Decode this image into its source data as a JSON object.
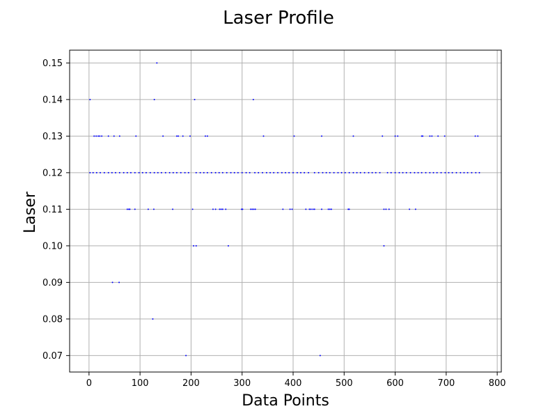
{
  "chart_data": {
    "type": "scatter",
    "title": "Laser Profile",
    "xlabel": "Data Points",
    "ylabel": "Laser",
    "xlim": [
      -38,
      808
    ],
    "ylim": [
      0.0655,
      0.1535
    ],
    "xticks": [
      0,
      100,
      200,
      300,
      400,
      500,
      600,
      700,
      800
    ],
    "yticks": [
      0.07,
      0.08,
      0.09,
      0.1,
      0.11,
      0.12,
      0.13,
      0.14,
      0.15
    ],
    "ytick_labels": [
      "0.07",
      "0.08",
      "0.09",
      "0.10",
      "0.11",
      "0.12",
      "0.13",
      "0.14",
      "0.15"
    ],
    "grid": true,
    "marker_color": "#0000ff",
    "series": [
      {
        "points": [
          [
            2,
            0.14
          ],
          [
            10,
            0.13
          ],
          [
            14,
            0.13
          ],
          [
            18,
            0.13
          ],
          [
            21,
            0.13
          ],
          [
            25,
            0.13
          ],
          [
            38,
            0.13
          ],
          [
            49,
            0.13
          ],
          [
            60,
            0.13
          ],
          [
            92,
            0.13
          ],
          [
            145,
            0.13
          ],
          [
            172,
            0.13
          ],
          [
            175,
            0.13
          ],
          [
            184,
            0.13
          ],
          [
            198,
            0.13
          ],
          [
            228,
            0.13
          ],
          [
            232,
            0.13
          ],
          [
            342,
            0.13
          ],
          [
            402,
            0.13
          ],
          [
            456,
            0.13
          ],
          [
            518,
            0.13
          ],
          [
            575,
            0.13
          ],
          [
            600,
            0.13
          ],
          [
            605,
            0.13
          ],
          [
            652,
            0.13
          ],
          [
            654,
            0.13
          ],
          [
            668,
            0.13
          ],
          [
            672,
            0.13
          ],
          [
            684,
            0.13
          ],
          [
            697,
            0.13
          ],
          [
            757,
            0.13
          ],
          [
            762,
            0.13
          ],
          [
            128,
            0.14
          ],
          [
            133,
            0.15
          ],
          [
            207,
            0.14
          ],
          [
            322,
            0.14
          ],
          [
            2,
            0.12
          ],
          [
            8,
            0.12
          ],
          [
            15,
            0.12
          ],
          [
            22,
            0.12
          ],
          [
            30,
            0.12
          ],
          [
            38,
            0.12
          ],
          [
            45,
            0.12
          ],
          [
            52,
            0.12
          ],
          [
            60,
            0.12
          ],
          [
            68,
            0.12
          ],
          [
            75,
            0.12
          ],
          [
            82,
            0.12
          ],
          [
            90,
            0.12
          ],
          [
            98,
            0.12
          ],
          [
            105,
            0.12
          ],
          [
            112,
            0.12
          ],
          [
            120,
            0.12
          ],
          [
            128,
            0.12
          ],
          [
            135,
            0.12
          ],
          [
            142,
            0.12
          ],
          [
            150,
            0.12
          ],
          [
            158,
            0.12
          ],
          [
            165,
            0.12
          ],
          [
            172,
            0.12
          ],
          [
            180,
            0.12
          ],
          [
            188,
            0.12
          ],
          [
            195,
            0.12
          ],
          [
            210,
            0.12
          ],
          [
            218,
            0.12
          ],
          [
            225,
            0.12
          ],
          [
            232,
            0.12
          ],
          [
            240,
            0.12
          ],
          [
            248,
            0.12
          ],
          [
            255,
            0.12
          ],
          [
            262,
            0.12
          ],
          [
            270,
            0.12
          ],
          [
            278,
            0.12
          ],
          [
            285,
            0.12
          ],
          [
            292,
            0.12
          ],
          [
            300,
            0.12
          ],
          [
            308,
            0.12
          ],
          [
            315,
            0.12
          ],
          [
            325,
            0.12
          ],
          [
            332,
            0.12
          ],
          [
            340,
            0.12
          ],
          [
            348,
            0.12
          ],
          [
            355,
            0.12
          ],
          [
            362,
            0.12
          ],
          [
            370,
            0.12
          ],
          [
            378,
            0.12
          ],
          [
            385,
            0.12
          ],
          [
            392,
            0.12
          ],
          [
            400,
            0.12
          ],
          [
            408,
            0.12
          ],
          [
            415,
            0.12
          ],
          [
            422,
            0.12
          ],
          [
            430,
            0.12
          ],
          [
            442,
            0.12
          ],
          [
            450,
            0.12
          ],
          [
            458,
            0.12
          ],
          [
            465,
            0.12
          ],
          [
            472,
            0.12
          ],
          [
            480,
            0.12
          ],
          [
            488,
            0.12
          ],
          [
            495,
            0.12
          ],
          [
            502,
            0.12
          ],
          [
            510,
            0.12
          ],
          [
            518,
            0.12
          ],
          [
            525,
            0.12
          ],
          [
            532,
            0.12
          ],
          [
            540,
            0.12
          ],
          [
            548,
            0.12
          ],
          [
            555,
            0.12
          ],
          [
            562,
            0.12
          ],
          [
            570,
            0.12
          ],
          [
            585,
            0.12
          ],
          [
            592,
            0.12
          ],
          [
            600,
            0.12
          ],
          [
            608,
            0.12
          ],
          [
            615,
            0.12
          ],
          [
            622,
            0.12
          ],
          [
            630,
            0.12
          ],
          [
            638,
            0.12
          ],
          [
            645,
            0.12
          ],
          [
            652,
            0.12
          ],
          [
            660,
            0.12
          ],
          [
            668,
            0.12
          ],
          [
            675,
            0.12
          ],
          [
            682,
            0.12
          ],
          [
            690,
            0.12
          ],
          [
            698,
            0.12
          ],
          [
            705,
            0.12
          ],
          [
            712,
            0.12
          ],
          [
            720,
            0.12
          ],
          [
            728,
            0.12
          ],
          [
            735,
            0.12
          ],
          [
            742,
            0.12
          ],
          [
            750,
            0.12
          ],
          [
            758,
            0.12
          ],
          [
            765,
            0.12
          ],
          [
            75,
            0.11
          ],
          [
            78,
            0.11
          ],
          [
            80,
            0.11
          ],
          [
            90,
            0.11
          ],
          [
            116,
            0.11
          ],
          [
            127,
            0.11
          ],
          [
            164,
            0.11
          ],
          [
            203,
            0.11
          ],
          [
            243,
            0.11
          ],
          [
            248,
            0.11
          ],
          [
            256,
            0.11
          ],
          [
            259,
            0.11
          ],
          [
            262,
            0.11
          ],
          [
            268,
            0.11
          ],
          [
            299,
            0.11
          ],
          [
            301,
            0.11
          ],
          [
            317,
            0.11
          ],
          [
            320,
            0.11
          ],
          [
            323,
            0.11
          ],
          [
            326,
            0.11
          ],
          [
            380,
            0.11
          ],
          [
            394,
            0.11
          ],
          [
            398,
            0.11
          ],
          [
            425,
            0.11
          ],
          [
            432,
            0.11
          ],
          [
            435,
            0.11
          ],
          [
            439,
            0.11
          ],
          [
            442,
            0.11
          ],
          [
            456,
            0.11
          ],
          [
            469,
            0.11
          ],
          [
            472,
            0.11
          ],
          [
            475,
            0.11
          ],
          [
            508,
            0.11
          ],
          [
            510,
            0.11
          ],
          [
            578,
            0.11
          ],
          [
            582,
            0.11
          ],
          [
            588,
            0.11
          ],
          [
            628,
            0.11
          ],
          [
            640,
            0.11
          ],
          [
            205,
            0.1
          ],
          [
            210,
            0.1
          ],
          [
            273,
            0.1
          ],
          [
            578,
            0.1
          ],
          [
            46,
            0.09
          ],
          [
            59,
            0.09
          ],
          [
            125,
            0.08
          ],
          [
            190,
            0.07
          ],
          [
            453,
            0.07
          ]
        ]
      }
    ]
  }
}
